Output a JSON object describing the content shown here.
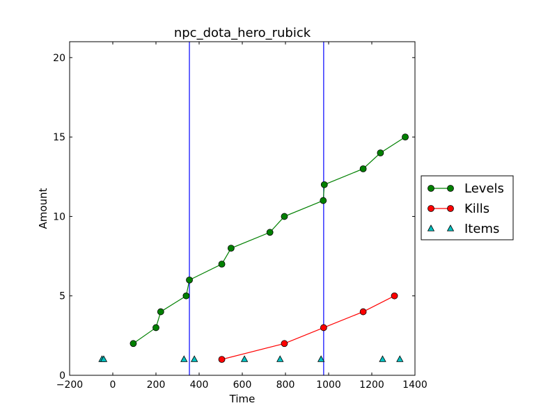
{
  "chart_data": {
    "type": "line",
    "title": "npc_dota_hero_rubick",
    "xlabel": "Time",
    "ylabel": "Amount",
    "xlim": [
      -200,
      1400
    ],
    "ylim": [
      0,
      21
    ],
    "xticks": [
      -200,
      0,
      200,
      400,
      600,
      800,
      1000,
      1200,
      1400
    ],
    "yticks": [
      0,
      5,
      10,
      15,
      20
    ],
    "grid": false,
    "legend_placement": "outside-right",
    "vlines": [
      {
        "x": 355,
        "color": "#0000ff"
      },
      {
        "x": 977,
        "color": "#0000ff"
      }
    ],
    "series": [
      {
        "name": "Levels",
        "style": "line-circle",
        "color": "#008000",
        "points": [
          [
            95,
            2
          ],
          [
            200,
            3
          ],
          [
            222,
            4
          ],
          [
            340,
            5
          ],
          [
            355,
            6
          ],
          [
            505,
            7
          ],
          [
            548,
            8
          ],
          [
            728,
            9
          ],
          [
            795,
            10
          ],
          [
            975,
            11
          ],
          [
            980,
            12
          ],
          [
            1160,
            13
          ],
          [
            1240,
            14
          ],
          [
            1355,
            15
          ]
        ]
      },
      {
        "name": "Kills",
        "style": "line-circle",
        "color": "#ff0000",
        "points": [
          [
            505,
            1
          ],
          [
            795,
            2
          ],
          [
            977,
            3
          ],
          [
            1160,
            4
          ],
          [
            1305,
            5
          ]
        ]
      },
      {
        "name": "Items",
        "style": "triangle",
        "color": "#00bfbf",
        "points": [
          [
            -50,
            1
          ],
          [
            -42,
            1
          ],
          [
            330,
            1
          ],
          [
            378,
            1
          ],
          [
            610,
            1
          ],
          [
            775,
            1
          ],
          [
            965,
            1
          ],
          [
            1250,
            1
          ],
          [
            1330,
            1
          ]
        ]
      }
    ]
  }
}
